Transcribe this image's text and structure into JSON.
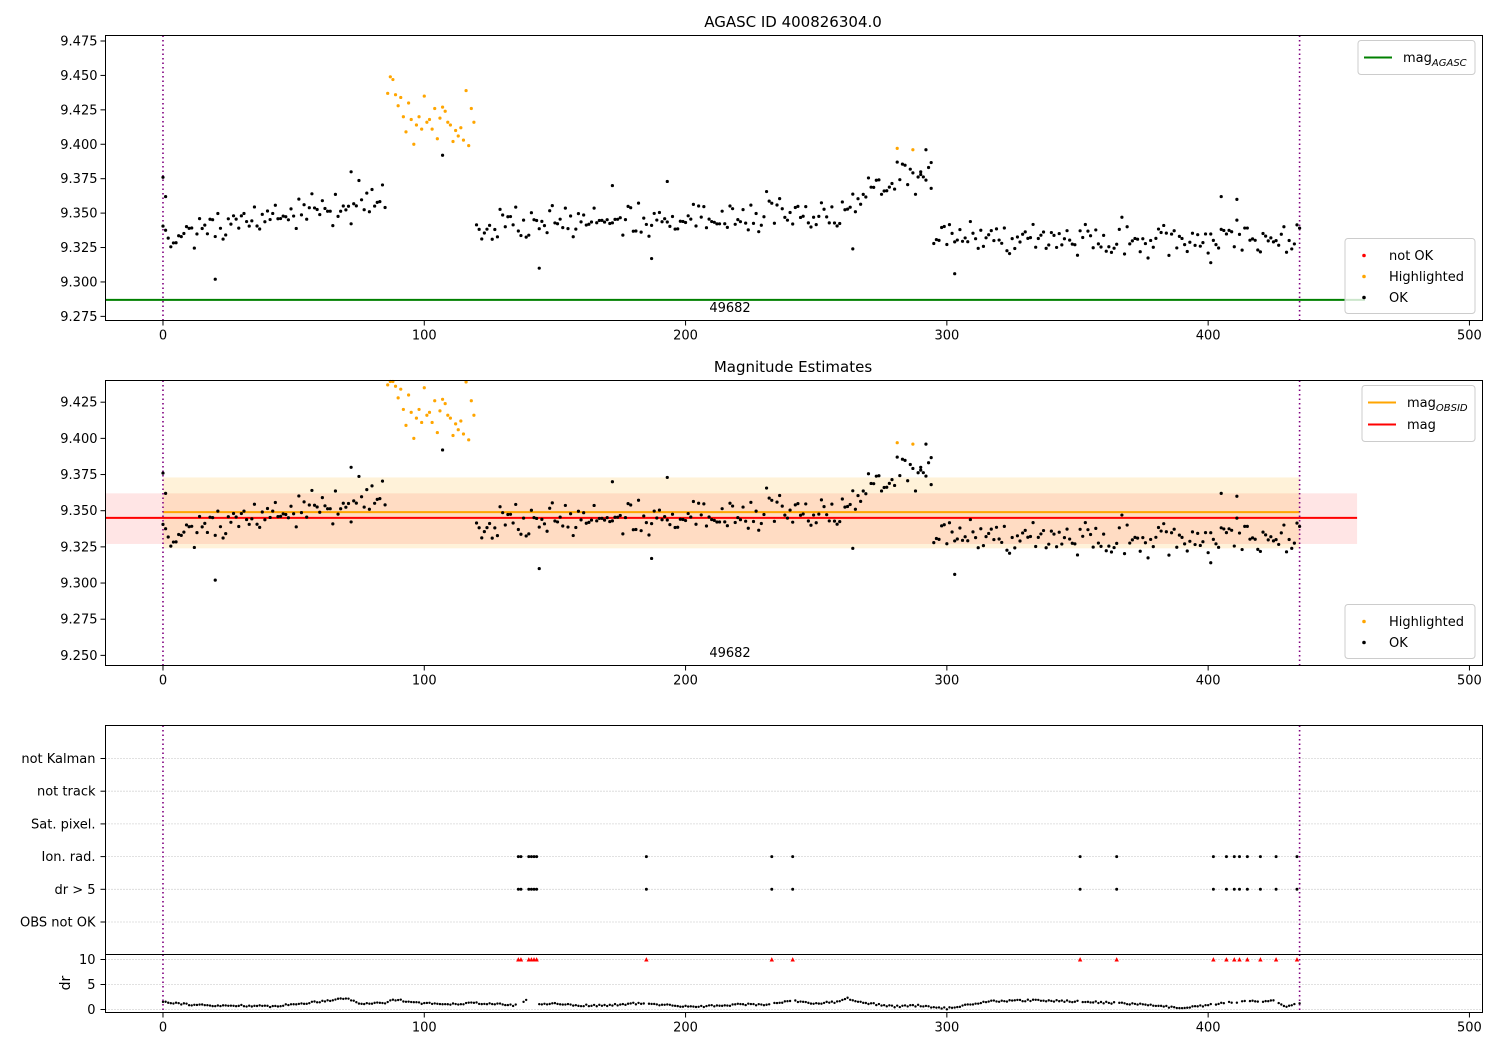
{
  "chart_data": [
    {
      "type": "scatter",
      "title": "AGASC ID 400826304.0",
      "xlim": [
        -22,
        505
      ],
      "ylim": [
        9.272,
        9.479
      ],
      "xticks": [
        0,
        100,
        200,
        300,
        400,
        500
      ],
      "yticks": [
        "9.275",
        "9.300",
        "9.325",
        "9.350",
        "9.375",
        "9.400",
        "9.425",
        "9.450",
        "9.475"
      ],
      "obsid_label": "49682",
      "obsid_label_x": 217,
      "obs_boundaries": [
        0,
        435
      ],
      "hlines": [
        {
          "name": "mag_AGASC",
          "y": 9.287,
          "x_from": -22,
          "x_to": 460,
          "color": "#008000"
        }
      ],
      "legend_top": {
        "placement": "top-right",
        "entries": [
          {
            "name": "mag",
            "sub": "AGASC",
            "color": "#008000",
            "kind": "line"
          }
        ]
      },
      "legend_bottom": {
        "placement": "lower-right",
        "entries": [
          {
            "name": "not OK",
            "color": "#ff0000",
            "kind": "marker"
          },
          {
            "name": "Highlighted",
            "color": "#ffa500",
            "kind": "marker"
          },
          {
            "name": "OK",
            "color": "#000000",
            "kind": "marker"
          }
        ]
      }
    },
    {
      "type": "scatter",
      "title": "Magnitude Estimates",
      "xlim": [
        -22,
        505
      ],
      "ylim": [
        9.243,
        9.44
      ],
      "xticks": [
        0,
        100,
        200,
        300,
        400,
        500
      ],
      "yticks": [
        "9.250",
        "9.275",
        "9.300",
        "9.325",
        "9.350",
        "9.375",
        "9.400",
        "9.425"
      ],
      "obsid_label": "49682",
      "obsid_label_x": 217,
      "obs_boundaries": [
        0,
        435
      ],
      "bands": [
        {
          "y1": 9.327,
          "y2": 9.362,
          "x_from": -22,
          "x_to": 457,
          "color": "#ff0000",
          "opacity": 0.1
        },
        {
          "y1": 9.324,
          "y2": 9.373,
          "x_from": 0,
          "x_to": 435,
          "color": "#ffa500",
          "opacity": 0.15
        }
      ],
      "hlines": [
        {
          "name": "mag_OBSID",
          "y": 9.349,
          "x_from": 0,
          "x_to": 435,
          "color": "#ffa500"
        },
        {
          "name": "mag",
          "y": 9.345,
          "x_from": -22,
          "x_to": 457,
          "color": "#ff0000"
        }
      ],
      "legend_top": {
        "placement": "top-right",
        "entries": [
          {
            "name": "mag",
            "sub": "OBSID",
            "color": "#ffa500",
            "kind": "line"
          },
          {
            "name": "mag",
            "sub": "",
            "color": "#ff0000",
            "kind": "line"
          }
        ]
      },
      "legend_bottom": {
        "placement": "lower-right",
        "entries": [
          {
            "name": "Highlighted",
            "color": "#ffa500",
            "kind": "marker"
          },
          {
            "name": "OK",
            "color": "#000000",
            "kind": "marker"
          }
        ]
      }
    },
    {
      "type": "scatter",
      "title": "",
      "xlim": [
        -22,
        505
      ],
      "categories": [
        "not Kalman",
        "not track",
        "Sat. pixel.",
        "Ion. rad.",
        "dr > 5",
        "OBS not OK"
      ],
      "obs_boundaries": [
        0,
        435
      ],
      "flagged_x": [
        136,
        137,
        140,
        141,
        142,
        143,
        185,
        233,
        241,
        351,
        365,
        402,
        407,
        410,
        412,
        415,
        420,
        426,
        434
      ],
      "flagged_rows": [
        "Ion. rad.",
        "dr > 5"
      ]
    },
    {
      "type": "line",
      "ylabel": "dr",
      "xlim": [
        -22,
        505
      ],
      "ylim": [
        -0.6,
        11
      ],
      "xticks": [
        0,
        100,
        200,
        300,
        400,
        500
      ],
      "yticks": [
        "0",
        "5",
        "10"
      ],
      "cap": 10,
      "obs_boundaries": [
        0,
        435
      ],
      "dr_knots": [
        [
          0,
          1.6
        ],
        [
          10,
          1.0
        ],
        [
          20,
          0.7
        ],
        [
          30,
          0.8
        ],
        [
          40,
          0.6
        ],
        [
          50,
          1.0
        ],
        [
          60,
          1.6
        ],
        [
          70,
          2.3
        ],
        [
          75,
          1.2
        ],
        [
          85,
          1.3
        ],
        [
          88,
          2.0
        ],
        [
          95,
          1.6
        ],
        [
          100,
          1.2
        ],
        [
          110,
          1.1
        ],
        [
          120,
          1.3
        ],
        [
          130,
          1.0
        ],
        [
          134,
          0.8
        ],
        [
          140,
          2.0
        ],
        [
          145,
          1.0
        ],
        [
          150,
          1.2
        ],
        [
          160,
          0.8
        ],
        [
          170,
          0.8
        ],
        [
          180,
          1.2
        ],
        [
          190,
          1.0
        ],
        [
          200,
          0.6
        ],
        [
          210,
          0.7
        ],
        [
          220,
          1.0
        ],
        [
          232,
          1.0
        ],
        [
          240,
          1.8
        ],
        [
          250,
          1.2
        ],
        [
          258,
          1.5
        ],
        [
          262,
          2.2
        ],
        [
          270,
          1.2
        ],
        [
          280,
          0.6
        ],
        [
          290,
          0.8
        ],
        [
          300,
          0.2
        ],
        [
          305,
          0.6
        ],
        [
          315,
          1.6
        ],
        [
          330,
          1.8
        ],
        [
          345,
          1.7
        ],
        [
          355,
          1.5
        ],
        [
          365,
          1.3
        ],
        [
          375,
          1.0
        ],
        [
          385,
          0.5
        ],
        [
          390,
          0.2
        ],
        [
          400,
          0.9
        ],
        [
          405,
          1.2
        ],
        [
          410,
          1.5
        ],
        [
          425,
          1.7
        ],
        [
          430,
          0.6
        ],
        [
          435,
          1.2
        ]
      ],
      "flagged_x": [
        136,
        137,
        140,
        141,
        142,
        143,
        185,
        233,
        241,
        351,
        365,
        402,
        407,
        410,
        412,
        415,
        420,
        426,
        434
      ]
    }
  ],
  "series_data": {
    "highlighted": {
      "name": "Highlighted",
      "color": "#ffa500",
      "points": [
        [
          86,
          9.437
        ],
        [
          87,
          9.449
        ],
        [
          88,
          9.447
        ],
        [
          89,
          9.436
        ],
        [
          90,
          9.428
        ],
        [
          91,
          9.434
        ],
        [
          92,
          9.42
        ],
        [
          93,
          9.409
        ],
        [
          94,
          9.43
        ],
        [
          95,
          9.418
        ],
        [
          96,
          9.4
        ],
        [
          97,
          9.414
        ],
        [
          98,
          9.42
        ],
        [
          99,
          9.411
        ],
        [
          100,
          9.435
        ],
        [
          101,
          9.416
        ],
        [
          102,
          9.418
        ],
        [
          103,
          9.411
        ],
        [
          104,
          9.426
        ],
        [
          105,
          9.404
        ],
        [
          106,
          9.419
        ],
        [
          107,
          9.427
        ],
        [
          108,
          9.424
        ],
        [
          109,
          9.416
        ],
        [
          110,
          9.414
        ],
        [
          111,
          9.402
        ],
        [
          112,
          9.41
        ],
        [
          113,
          9.406
        ],
        [
          114,
          9.412
        ],
        [
          115,
          9.403
        ],
        [
          116,
          9.439
        ],
        [
          117,
          9.399
        ],
        [
          118,
          9.426
        ],
        [
          119,
          9.416
        ],
        [
          281,
          9.397
        ],
        [
          287,
          9.396
        ]
      ]
    },
    "ok": {
      "name": "OK",
      "color": "#000000",
      "segments": [
        {
          "x_from": 0,
          "x_to": 85,
          "mean_start": 9.333,
          "mean_end": 9.362,
          "spread": 0.011
        },
        {
          "x_from": 120,
          "x_to": 260,
          "mean_start": 9.342,
          "mean_end": 9.35,
          "spread": 0.011
        },
        {
          "x_from": 261,
          "x_to": 294,
          "mean_start": 9.36,
          "mean_end": 9.385,
          "spread": 0.011
        },
        {
          "x_from": 295,
          "x_to": 435,
          "mean_start": 9.333,
          "mean_end": 9.33,
          "spread": 0.01
        }
      ],
      "extra_points": [
        [
          0,
          9.376
        ],
        [
          1,
          9.362
        ],
        [
          20,
          9.302
        ],
        [
          72,
          9.38
        ],
        [
          107,
          9.392
        ],
        [
          144,
          9.31
        ],
        [
          172,
          9.37
        ],
        [
          187,
          9.317
        ],
        [
          193,
          9.373
        ],
        [
          264,
          9.324
        ],
        [
          290,
          9.38
        ],
        [
          292,
          9.396
        ],
        [
          294,
          9.368
        ],
        [
          303,
          9.306
        ],
        [
          401,
          9.314
        ],
        [
          405,
          9.362
        ],
        [
          411,
          9.36
        ]
      ]
    }
  }
}
